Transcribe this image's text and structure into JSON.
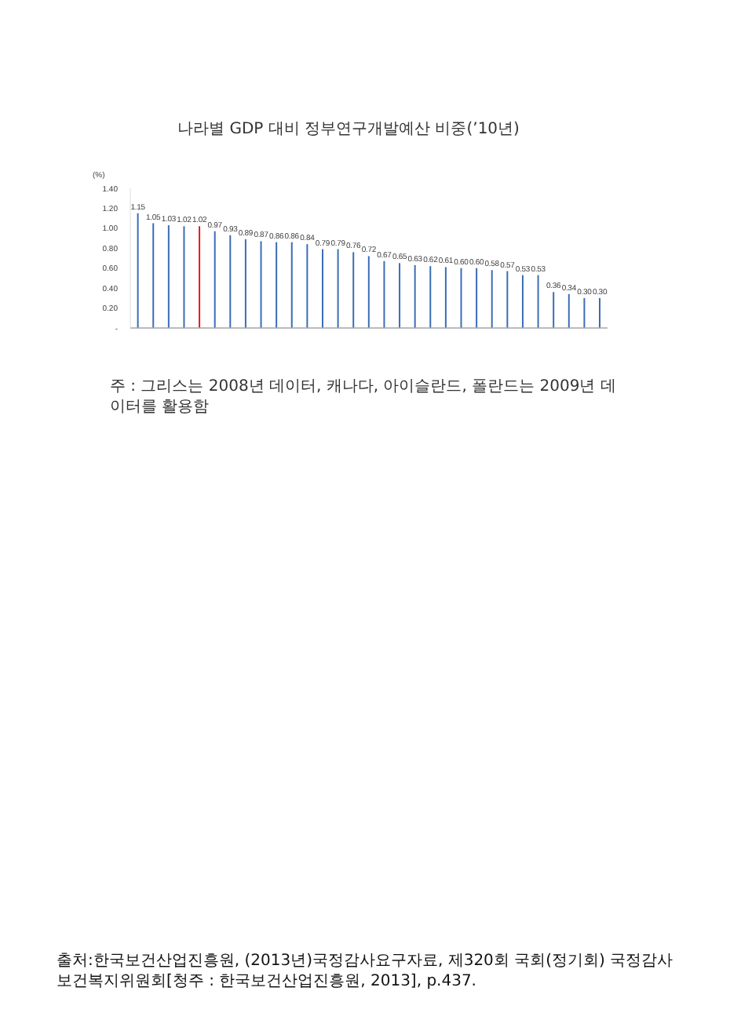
{
  "chart_data": {
    "type": "bar",
    "title": "나라별 GDP 대비 정부연구개발예산 비중(’10년)",
    "ylabel": "(%)",
    "categories": [
      null,
      null,
      null,
      null,
      null,
      null,
      null,
      null,
      null,
      null,
      null,
      null,
      null,
      null,
      null,
      null,
      null,
      null,
      null,
      null,
      null,
      null,
      null,
      null,
      null,
      null,
      null,
      null,
      null,
      null,
      null
    ],
    "values": [
      1.15,
      1.05,
      1.03,
      1.02,
      1.02,
      0.97,
      0.93,
      0.89,
      0.87,
      0.86,
      0.86,
      0.84,
      0.79,
      0.79,
      0.76,
      0.72,
      0.67,
      0.65,
      0.63,
      0.62,
      0.61,
      0.6,
      0.6,
      0.58,
      0.57,
      0.53,
      0.53,
      0.36,
      0.34,
      0.3,
      0.3
    ],
    "value_labels": [
      "1.15",
      "1.05",
      "1.03",
      "1.02",
      "1.02",
      "0.97",
      "0.93",
      "0.89",
      "0.87",
      "0.86",
      "0.86",
      "0.84",
      "0.79",
      "0.79",
      "0.76",
      "0.72",
      "0.67",
      "0.65",
      "0.63",
      "0.62",
      "0.61",
      "0.60",
      "0.60",
      "0.58",
      "0.57",
      "0.53",
      "0.53",
      "0.36",
      "0.34",
      "0.30",
      "0.30"
    ],
    "colors": [
      "#3b6db5",
      "#3b6db5",
      "#3b6db5",
      "#3b6db5",
      "#e8161b",
      "#3b6db5",
      "#3b6db5",
      "#3b6db5",
      "#3b6db5",
      "#3b6db5",
      "#3b6db5",
      "#3b6db5",
      "#3b6db5",
      "#3b6db5",
      "#3b6db5",
      "#3b6db5",
      "#3b6db5",
      "#3b6db5",
      "#3b6db5",
      "#3b6db5",
      "#3b6db5",
      "#3b6db5",
      "#3b6db5",
      "#3b6db5",
      "#3b6db5",
      "#3b6db5",
      "#3b6db5",
      "#3b6db5",
      "#3b6db5",
      "#3b6db5",
      "#3b6db5"
    ],
    "ylim": [
      0,
      1.4
    ],
    "yticks": [
      {
        "value": 0,
        "label": "-"
      },
      {
        "value": 0.2,
        "label": "0.20"
      },
      {
        "value": 0.4,
        "label": "0.40"
      },
      {
        "value": 0.6,
        "label": "0.60"
      },
      {
        "value": 0.8,
        "label": "0.80"
      },
      {
        "value": 1.0,
        "label": "1.00"
      },
      {
        "value": 1.2,
        "label": "1.20"
      },
      {
        "value": 1.4,
        "label": "1.40"
      }
    ],
    "annotations": [
      "주 : 그리스는 2008년 데이터, 캐나다, 아이슬란드, 폴란드는 2009년 데이터를 활용함",
      "출처:한국보건산업진흥원, (2013년)국정감사요구자료, 제320회 국회(정기회) 국정감사 보건복지위원회[청주 : 한국보건산업진흥원, 2013], p.437."
    ]
  }
}
